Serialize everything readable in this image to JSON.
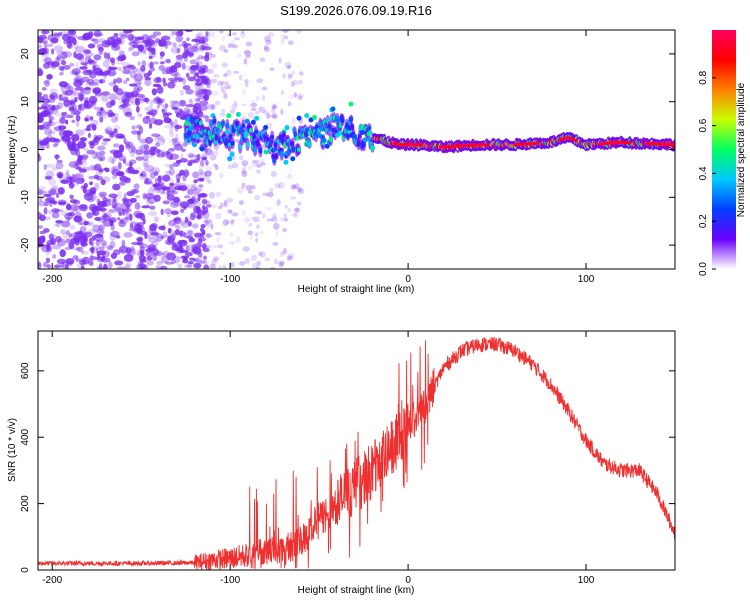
{
  "title": "S199.2026.076.09.19.R16",
  "colors": {
    "snr_line": "#ee3030",
    "frame": "#000000",
    "scatter": "#7a2cf0"
  },
  "chart_data": [
    {
      "type": "heatmap",
      "name": "spectrogram",
      "xlabel": "Height of straight line (km)",
      "ylabel": "Frequency (Hz)",
      "xlim": [
        -208,
        150
      ],
      "ylim": [
        -25,
        25
      ],
      "x_ticks": [
        -200,
        -100,
        0,
        100
      ],
      "x_tick_labels": [
        "-200",
        "-100",
        "0",
        "100"
      ],
      "y_ticks": [
        -20,
        -10,
        0,
        10,
        20
      ],
      "y_tick_labels": [
        "-20",
        "-10",
        "0",
        "10",
        "20"
      ],
      "colorbar": {
        "label": "Normalized spectral amplitude",
        "range": [
          0,
          1
        ],
        "ticks": [
          0.0,
          0.2,
          0.4,
          0.6,
          0.8
        ],
        "tick_labels": [
          "0.0",
          "0.2",
          "0.4",
          "0.6",
          "0.8"
        ],
        "stops": [
          "#ffffff",
          "#6a00ff",
          "#0040ff",
          "#00c8ff",
          "#00ff60",
          "#c8ff00",
          "#ff8000",
          "#ff0000",
          "#ff0060"
        ]
      },
      "ridge": {
        "description": "frequency ridge vs height",
        "points": [
          [
            -125,
            4
          ],
          [
            -110,
            4
          ],
          [
            -95,
            3
          ],
          [
            -85,
            2
          ],
          [
            -75,
            0
          ],
          [
            -65,
            2
          ],
          [
            -55,
            3
          ],
          [
            -45,
            4
          ],
          [
            -35,
            5
          ],
          [
            -25,
            3
          ],
          [
            -15,
            2
          ],
          [
            -5,
            1
          ],
          [
            5,
            1
          ],
          [
            20,
            0.5
          ],
          [
            40,
            1
          ],
          [
            60,
            1
          ],
          [
            80,
            1.5
          ],
          [
            90,
            2.5
          ],
          [
            100,
            1
          ],
          [
            120,
            1.5
          ],
          [
            150,
            1
          ]
        ]
      }
    },
    {
      "type": "line",
      "name": "snr",
      "xlabel": "Height of straight line (km)",
      "ylabel": "SNR (10 * v/v)",
      "xlim": [
        -208,
        150
      ],
      "ylim": [
        0,
        720
      ],
      "x_ticks": [
        -200,
        -100,
        0,
        100
      ],
      "x_tick_labels": [
        "-200",
        "-100",
        "0",
        "100"
      ],
      "y_ticks": [
        0,
        200,
        400,
        600
      ],
      "y_tick_labels": [
        "0",
        "200",
        "400",
        "600"
      ],
      "series": [
        {
          "name": "SNR",
          "envelope": [
            [
              -208,
              20
            ],
            [
              -150,
              20
            ],
            [
              -120,
              22
            ],
            [
              -110,
              30
            ],
            [
              -100,
              35
            ],
            [
              -90,
              45
            ],
            [
              -80,
              60
            ],
            [
              -70,
              60
            ],
            [
              -60,
              90
            ],
            [
              -50,
              150
            ],
            [
              -40,
              200
            ],
            [
              -30,
              250
            ],
            [
              -20,
              300
            ],
            [
              -10,
              360
            ],
            [
              -5,
              400
            ],
            [
              0,
              430
            ],
            [
              10,
              500
            ],
            [
              20,
              610
            ],
            [
              30,
              660
            ],
            [
              40,
              680
            ],
            [
              50,
              680
            ],
            [
              60,
              660
            ],
            [
              70,
              620
            ],
            [
              80,
              560
            ],
            [
              90,
              480
            ],
            [
              100,
              390
            ],
            [
              110,
              320
            ],
            [
              120,
              300
            ],
            [
              130,
              300
            ],
            [
              140,
              230
            ],
            [
              150,
              110
            ]
          ]
        }
      ]
    }
  ]
}
